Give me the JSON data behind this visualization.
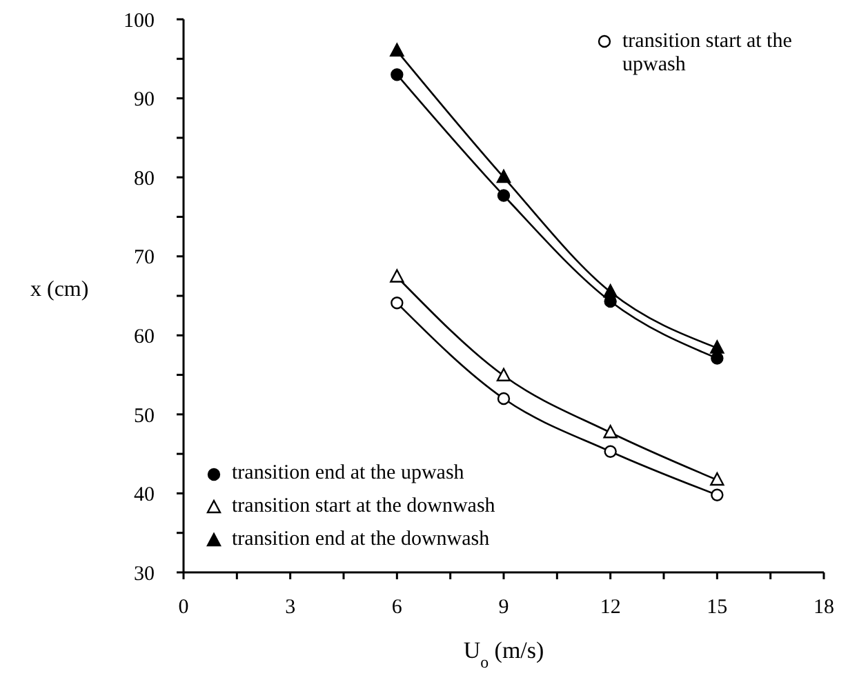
{
  "chart_data": {
    "type": "line",
    "xlabel": "U$_{o}$ (m/s)",
    "ylabel": "x (cm)",
    "x": [
      6,
      9,
      12,
      15
    ],
    "series": [
      {
        "name": "transition start at the upwash",
        "color": "#000000",
        "marker": "circle",
        "values": [
          64.1,
          52.0,
          45.3,
          39.8
        ]
      },
      {
        "name": "transition end at the upwash",
        "color": "#000000",
        "marker": "circle",
        "values": [
          93,
          77.7,
          64.3,
          57.1
        ]
      },
      {
        "name": "transition start at the downwash",
        "color": "#000000",
        "marker": "triangle",
        "values": [
          67.4,
          54.9,
          47.7,
          41.7
        ]
      },
      {
        "name": "transition end at the downwash",
        "color": "#000000",
        "marker": "triangle",
        "values": [
          96,
          80,
          65.5,
          58.4
        ]
      }
    ],
    "xlim": [
      0,
      18
    ],
    "xticks": [
      0,
      {
        "value": 1.5,
        "label": null
      },
      3,
      {
        "value": 4.5,
        "label": null
      },
      6,
      {
        "value": 7.5,
        "label": null
      },
      9,
      {
        "value": 10.5,
        "label": null
      },
      12,
      {
        "value": 13.5,
        "label": null
      },
      15,
      {
        "value": 16.5,
        "label": null
      },
      18
    ],
    "ylim": [
      30,
      100
    ],
    "yticks": [
      30,
      {
        "value": 35,
        "label": null
      },
      40,
      {
        "value": 45,
        "label": null
      },
      50,
      {
        "value": 55,
        "label": null
      },
      60,
      {
        "value": 65,
        "label": null
      },
      70,
      {
        "value": 75,
        "label": null
      },
      80,
      {
        "value": 85,
        "label": null
      },
      90,
      {
        "value": 95,
        "label": null
      },
      100
    ],
    "legend": "left",
    "line_style": "solid",
    "grid": false
  }
}
